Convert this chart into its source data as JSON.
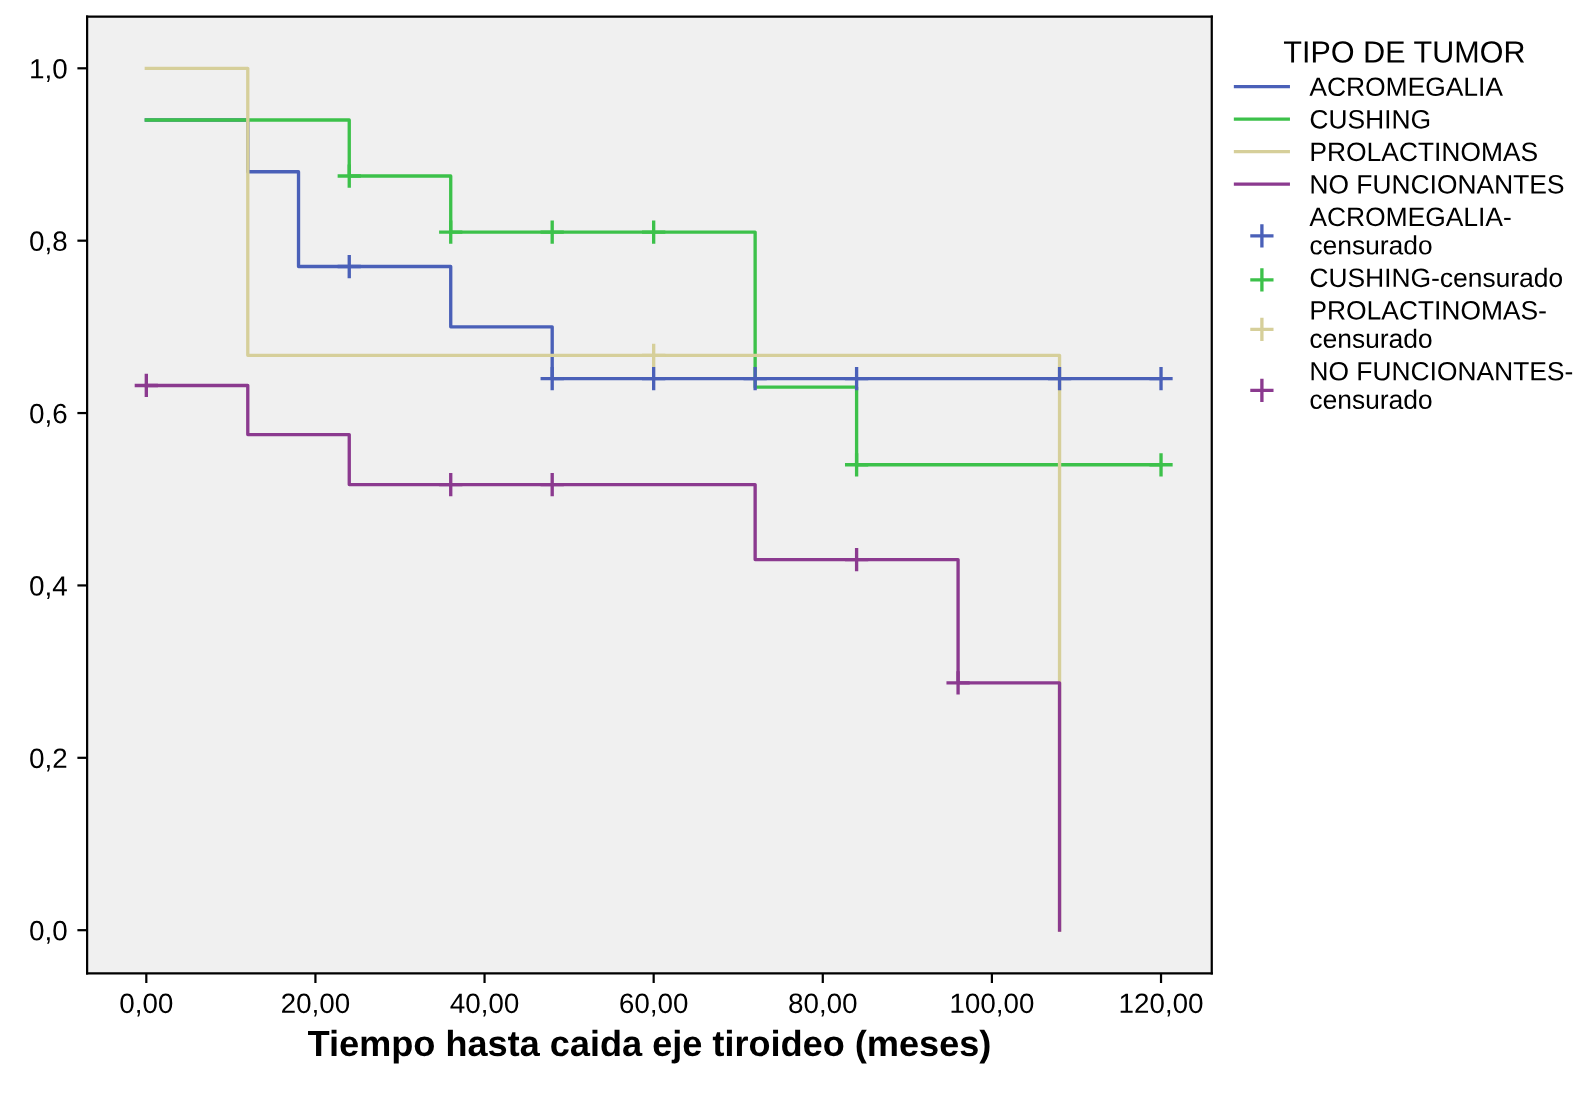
{
  "chart_data": {
    "type": "step",
    "xlabel": "Tiempo hasta caida eje tiroideo (meses)",
    "legend_title": "TIPO DE TUMOR",
    "legend": "right",
    "grid": false,
    "xlim": [
      -7,
      126
    ],
    "ylim": [
      -0.05,
      1.06
    ],
    "xticks": [
      {
        "value": 0,
        "label": "0,00"
      },
      {
        "value": 20,
        "label": "20,00"
      },
      {
        "value": 40,
        "label": "40,00"
      },
      {
        "value": 60,
        "label": "60,00"
      },
      {
        "value": 80,
        "label": "80,00"
      },
      {
        "value": 100,
        "label": "100,00"
      },
      {
        "value": 120,
        "label": "120,00"
      }
    ],
    "yticks": [
      {
        "value": 0,
        "label": "0,0"
      },
      {
        "value": 0.2,
        "label": "0,2"
      },
      {
        "value": 0.4,
        "label": "0,4"
      },
      {
        "value": 0.6,
        "label": "0,6"
      },
      {
        "value": 0.8,
        "label": "0,8"
      },
      {
        "value": 1.0,
        "label": "1,0"
      }
    ],
    "series": [
      {
        "name": "ACROMEGALIA",
        "color": "#4a60b8",
        "x": [
          0,
          12,
          18,
          36,
          48,
          120
        ],
        "values": [
          0.94,
          0.88,
          0.77,
          0.7,
          0.64,
          0.64
        ]
      },
      {
        "name": "CUSHING",
        "color": "#3cc14a",
        "x": [
          0,
          24,
          36,
          72,
          84,
          120
        ],
        "values": [
          0.94,
          0.875,
          0.81,
          0.63,
          0.54,
          0.54
        ]
      },
      {
        "name": "PROLACTINOMAS",
        "color": "#d6cf9a",
        "x": [
          0,
          12,
          108,
          108
        ],
        "values": [
          1.0,
          0.667,
          0.667,
          0
        ]
      },
      {
        "name": "NO FUNCIONANTES",
        "color": "#8b3a8f",
        "x": [
          0,
          12,
          24,
          72,
          96,
          108,
          108
        ],
        "values": [
          0.632,
          0.575,
          0.517,
          0.43,
          0.287,
          0.287,
          0
        ]
      },
      {
        "name": "ACROMEGALIA-\ncensurado",
        "type": "scatter",
        "marker": "cross",
        "color": "#4a60b8",
        "x": [
          24,
          48,
          60,
          72,
          84,
          108,
          120
        ],
        "values": [
          0.77,
          0.64,
          0.64,
          0.64,
          0.64,
          0.64,
          0.64
        ]
      },
      {
        "name": "CUSHING-censurado",
        "type": "scatter",
        "marker": "cross",
        "color": "#3cc14a",
        "x": [
          24,
          36,
          48,
          60,
          84,
          120
        ],
        "values": [
          0.875,
          0.81,
          0.81,
          0.81,
          0.54,
          0.54
        ]
      },
      {
        "name": "PROLACTINOMAS-\ncensurado",
        "type": "scatter",
        "marker": "cross",
        "color": "#d6cf9a",
        "x": [
          60
        ],
        "values": [
          0.667
        ]
      },
      {
        "name": "NO FUNCIONANTES-\ncensurado",
        "type": "scatter",
        "marker": "cross",
        "color": "#8b3a8f",
        "x": [
          0,
          36,
          48,
          84,
          96
        ],
        "values": [
          0.632,
          0.517,
          0.517,
          0.43,
          0.287
        ]
      }
    ]
  }
}
